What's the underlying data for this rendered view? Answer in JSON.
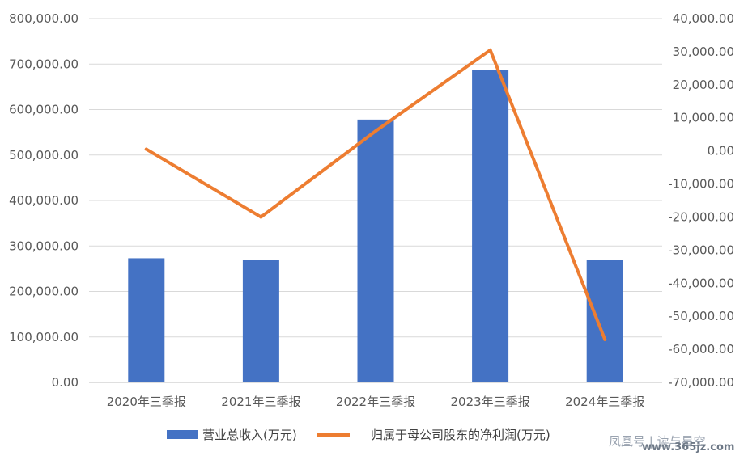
{
  "chart_data": {
    "type": "bar",
    "title": "",
    "categories": [
      "2020年三季报",
      "2021年三季报",
      "2022年三季报",
      "2023年三季报",
      "2024年三季报"
    ],
    "series": [
      {
        "name": "营业总收入(万元)",
        "type": "bar",
        "axis": "left",
        "color": "#4472C4",
        "values": [
          273000,
          270000,
          578000,
          688000,
          270000
        ]
      },
      {
        "name": "归属于母公司股东的净利润(万元)",
        "type": "line",
        "axis": "right",
        "color": "#ED7D31",
        "values": [
          500,
          -20000,
          6000,
          30500,
          -57000
        ]
      }
    ],
    "left_axis": {
      "ylim": [
        0,
        800000
      ],
      "ticks": [
        "800,000.00",
        "700,000.00",
        "600,000.00",
        "500,000.00",
        "400,000.00",
        "300,000.00",
        "200,000.00",
        "100,000.00",
        "0.00"
      ]
    },
    "right_axis": {
      "ylim": [
        -70000,
        40000
      ],
      "ticks": [
        "40,000.00",
        "30,000.00",
        "20,000.00",
        "10,000.00",
        "0.00",
        "-10,000.00",
        "-20,000.00",
        "-30,000.00",
        "-40,000.00",
        "-50,000.00",
        "-60,000.00",
        "-70,000.00"
      ]
    },
    "grid": true,
    "legend_position": "bottom"
  },
  "watermark": {
    "text": "凤凰号 | 读与星空",
    "url": "www.365jz.com"
  }
}
